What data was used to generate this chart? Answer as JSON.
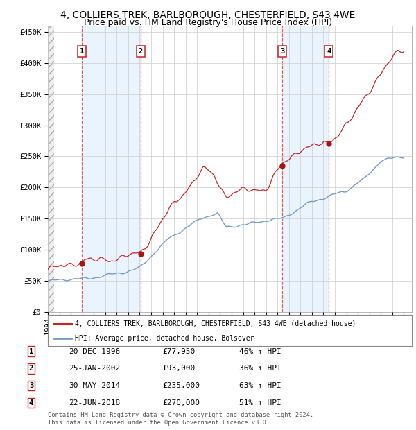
{
  "title1": "4, COLLIERS TREK, BARLBOROUGH, CHESTERFIELD, S43 4WE",
  "title2": "Price paid vs. HM Land Registry's House Price Index (HPI)",
  "hpi_label": "HPI: Average price, detached house, Bolsover",
  "property_label": "4, COLLIERS TREK, BARLBOROUGH, CHESTERFIELD, S43 4WE (detached house)",
  "footer1": "Contains HM Land Registry data © Crown copyright and database right 2024.",
  "footer2": "This data is licensed under the Open Government Licence v3.0.",
  "sales": [
    {
      "num": 1,
      "date_label": "20-DEC-1996",
      "year": 1996.97,
      "price": 77950,
      "pct": "46% ↑ HPI"
    },
    {
      "num": 2,
      "date_label": "25-JAN-2002",
      "year": 2002.07,
      "price": 93000,
      "pct": "36% ↑ HPI"
    },
    {
      "num": 3,
      "date_label": "30-MAY-2014",
      "year": 2014.41,
      "price": 235000,
      "pct": "63% ↑ HPI"
    },
    {
      "num": 4,
      "date_label": "22-JUN-2018",
      "year": 2018.47,
      "price": 270000,
      "pct": "51% ↑ HPI"
    }
  ],
  "ylim": [
    0,
    460000
  ],
  "xlim_start": 1994.0,
  "xlim_end": 2025.7,
  "hpi_color": "#7799cc",
  "property_color": "#cc2222",
  "sale_dot_color": "#aa1111",
  "bg_color": "#ffffff",
  "plot_bg": "#ffffff",
  "grid_color": "#cccccc",
  "shade_color": "#ddeeff",
  "dashed_color": "#dd4444",
  "title_fontsize": 10,
  "subtitle_fontsize": 9
}
